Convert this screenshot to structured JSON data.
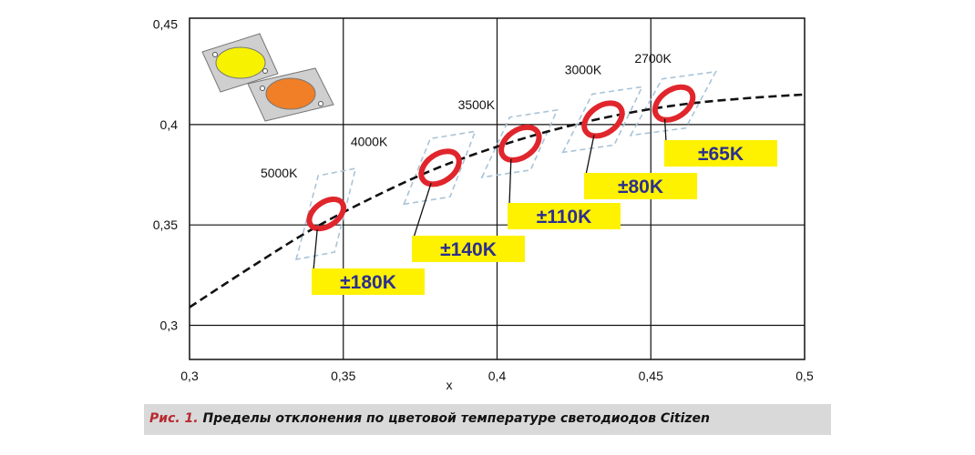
{
  "chart_data": {
    "type": "scatter",
    "xlabel": "x",
    "ylabel": "",
    "xlim": [
      0.3,
      0.5
    ],
    "ylim": [
      0.283,
      0.453
    ],
    "x_ticks": [
      "0,3",
      "0,35",
      "0,4",
      "0,45",
      "0,5"
    ],
    "y_ticks": [
      "0,3",
      "0,35",
      "0,4",
      "0,45"
    ],
    "x_tick_values": [
      0.3,
      0.35,
      0.4,
      0.45,
      0.5
    ],
    "y_tick_values": [
      0.3,
      0.35,
      0.4,
      0.45
    ],
    "grid": true,
    "planckian_locus": {
      "x": [
        0.3,
        0.32,
        0.34,
        0.36,
        0.38,
        0.4,
        0.42,
        0.44,
        0.46,
        0.48,
        0.5
      ],
      "y": [
        0.309,
        0.329,
        0.348,
        0.364,
        0.378,
        0.389,
        0.398,
        0.405,
        0.41,
        0.413,
        0.415
      ]
    },
    "bins": [
      {
        "cct": "5000K",
        "tolerance": "±180K",
        "center": [
          0.3445,
          0.3555
        ]
      },
      {
        "cct": "4000K",
        "tolerance": "±140K",
        "center": [
          0.3815,
          0.3785
        ]
      },
      {
        "cct": "3500K",
        "tolerance": "±110K",
        "center": [
          0.4075,
          0.3905
        ]
      },
      {
        "cct": "3000K",
        "tolerance": "±80K",
        "center": [
          0.4345,
          0.4025
        ]
      },
      {
        "cct": "2700K",
        "tolerance": "±65K",
        "center": [
          0.4575,
          0.4105
        ]
      }
    ],
    "colors": {
      "ellipse": "#e0262c",
      "quadrangle": "#a9c4d8",
      "label_bg": "#fff200",
      "label_text": "#2b2f8f",
      "led_yellow": "#f6f200",
      "led_orange": "#f07f28",
      "led_plate": "#cfcfcf"
    }
  },
  "caption": {
    "number": "Рис. 1.",
    "text": "Пределы отклонения по цветовой температуре светодиодов Citizen"
  }
}
